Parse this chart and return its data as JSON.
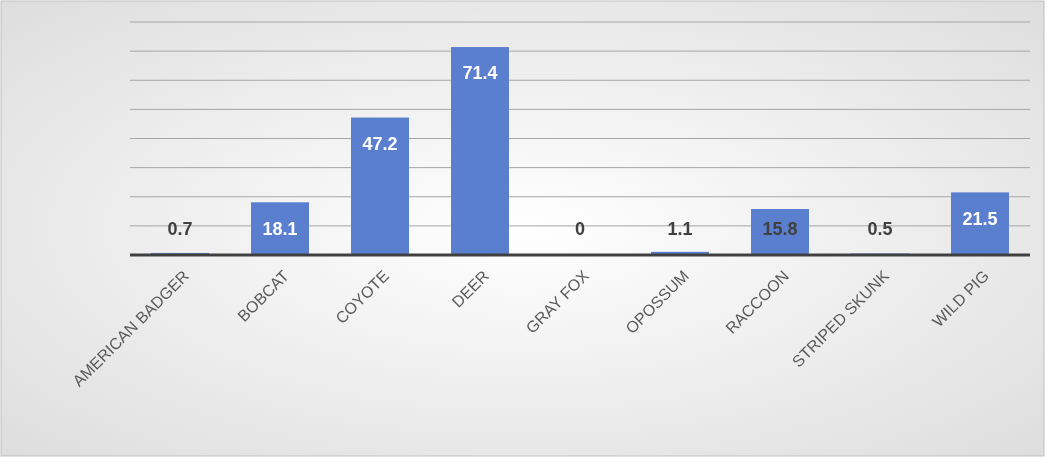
{
  "chart_data": {
    "type": "bar",
    "categories": [
      "AMERICAN BADGER",
      "BOBCAT",
      "COYOTE",
      "DEER",
      "GRAY FOX",
      "OPOSSUM",
      "RACCOON",
      "STRIPED SKUNK",
      "WILD PIG"
    ],
    "values": [
      0.7,
      18.1,
      47.2,
      71.4,
      0,
      1.1,
      15.8,
      0.5,
      21.5
    ],
    "color": "#5b7fcf",
    "ylim": [
      0,
      80
    ],
    "yticks": [
      {
        "value": 0,
        "label": null
      },
      {
        "value": 10,
        "label": null
      },
      {
        "value": 20,
        "label": null
      },
      {
        "value": 30,
        "label": null
      },
      {
        "value": 40,
        "label": null
      },
      {
        "value": 50,
        "label": null
      },
      {
        "value": 60,
        "label": null
      },
      {
        "value": 70,
        "label": null
      },
      {
        "value": 80,
        "label": null
      }
    ],
    "grid": "y",
    "tick_labels": "x",
    "data_labels": true
  }
}
